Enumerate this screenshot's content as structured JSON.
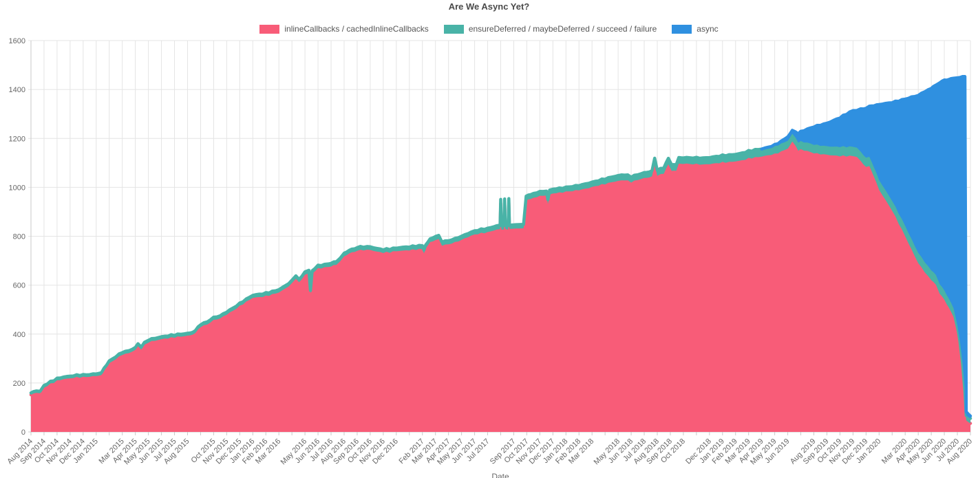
{
  "title": "Are We Async Yet?",
  "colors": {
    "pink": "#F85C78",
    "teal": "#49B3A7",
    "blue": "#2F90E0",
    "grid": "#e4e4e4",
    "axis": "#c9c9c9",
    "tick_text": "#666666",
    "title_text": "#4a4a4a"
  },
  "legend": [
    {
      "label": "inlineCallbacks / cachedInlineCallbacks",
      "color_key": "pink"
    },
    {
      "label": "ensureDeferred / maybeDeferred / succeed / failure",
      "color_key": "teal"
    },
    {
      "label": "async",
      "color_key": "blue"
    }
  ],
  "chart_data": {
    "type": "area",
    "stacked": true,
    "title": "Are We Async Yet?",
    "xlabel": "Date",
    "ylabel": "",
    "ylim": [
      0,
      1600
    ],
    "grid": true,
    "legend_position": "top",
    "y_ticks": [
      0,
      200,
      400,
      600,
      800,
      1000,
      1200,
      1400,
      1600
    ],
    "x_ticks": [
      "Aug 2014",
      "Sep 2014",
      "Oct 2014",
      "Nov 2014",
      "Dec 2014",
      "Jan 2015",
      "",
      "Mar 2015",
      "Apr 2015",
      "May 2015",
      "Jun 2015",
      "Jul 2015",
      "Aug 2015",
      "",
      "Oct 2015",
      "Nov 2015",
      "Dec 2015",
      "Jan 2016",
      "Feb 2016",
      "Mar 2016",
      "",
      "May 2016",
      "Jun 2016",
      "Jul 2016",
      "Aug 2016",
      "Sep 2016",
      "Oct 2016",
      "Nov 2016",
      "Dec 2016",
      "",
      "Feb 2017",
      "Mar 2017",
      "Apr 2017",
      "May 2017",
      "Jun 2017",
      "Jul 2017",
      "",
      "Sep 2017",
      "Oct 2017",
      "Nov 2017",
      "Dec 2017",
      "Jan 2018",
      "Feb 2018",
      "Mar 2018",
      "",
      "May 2018",
      "Jun 2018",
      "Jul 2018",
      "Aug 2018",
      "Sep 2018",
      "Oct 2018",
      "",
      "Dec 2018",
      "Jan 2019",
      "Feb 2019",
      "Mar 2019",
      "Apr 2019",
      "May 2019",
      "Jun 2019",
      "",
      "Aug 2019",
      "Sep 2019",
      "Oct 2019",
      "Nov 2019",
      "Dec 2019",
      "Jan 2020",
      "",
      "Mar 2020",
      "Apr 2020",
      "May 2020",
      "Jun 2020",
      "Jul 2020",
      "Aug 2020"
    ],
    "series_names": [
      "inlineCallbacks / cachedInlineCallbacks",
      "ensureDeferred / maybeDeferred / succeed / failure",
      "async"
    ],
    "points_format": [
      "months_since_aug_2014",
      "inlineCallbacks",
      "ensureDeferred",
      "async"
    ],
    "points": [
      [
        0,
        150,
        8,
        0
      ],
      [
        0.4,
        162,
        8,
        0
      ],
      [
        0.7,
        157,
        8,
        0
      ],
      [
        1,
        181,
        9,
        0
      ],
      [
        1.5,
        196,
        9,
        0
      ],
      [
        2,
        209,
        9,
        0
      ],
      [
        2.5,
        216,
        9,
        0
      ],
      [
        3,
        219,
        9,
        0
      ],
      [
        3.5,
        223,
        9,
        0
      ],
      [
        4,
        224,
        9,
        0
      ],
      [
        4.5,
        226,
        9,
        0
      ],
      [
        5,
        229,
        9,
        0
      ],
      [
        5.4,
        230,
        10,
        0
      ],
      [
        5.6,
        252,
        10,
        0
      ],
      [
        6,
        280,
        10,
        0
      ],
      [
        6.5,
        298,
        10,
        0
      ],
      [
        7,
        316,
        10,
        0
      ],
      [
        7.5,
        322,
        10,
        0
      ],
      [
        8,
        335,
        10,
        0
      ],
      [
        8.2,
        350,
        10,
        0
      ],
      [
        8.45,
        338,
        10,
        0
      ],
      [
        8.7,
        355,
        10,
        0
      ],
      [
        9,
        367,
        10,
        0
      ],
      [
        9.5,
        373,
        10,
        0
      ],
      [
        10,
        379,
        10,
        0
      ],
      [
        10.5,
        383,
        10,
        0
      ],
      [
        11,
        387,
        10,
        0
      ],
      [
        11.5,
        390,
        10,
        0
      ],
      [
        12,
        393,
        10,
        0
      ],
      [
        12.6,
        402,
        10,
        0
      ],
      [
        12.8,
        418,
        10,
        0
      ],
      [
        13,
        430,
        10,
        0
      ],
      [
        13.5,
        439,
        11,
        0
      ],
      [
        14,
        457,
        11,
        0
      ],
      [
        14.5,
        464,
        11,
        0
      ],
      [
        15,
        480,
        11,
        0
      ],
      [
        15.5,
        496,
        11,
        0
      ],
      [
        16,
        514,
        11,
        0
      ],
      [
        16.5,
        532,
        11,
        0
      ],
      [
        17,
        548,
        11,
        0
      ],
      [
        17.5,
        551,
        12,
        0
      ],
      [
        18,
        555,
        12,
        0
      ],
      [
        18.5,
        562,
        12,
        0
      ],
      [
        19,
        570,
        12,
        0
      ],
      [
        19.5,
        586,
        12,
        0
      ],
      [
        20,
        606,
        12,
        0
      ],
      [
        20.3,
        628,
        12,
        0
      ],
      [
        20.55,
        610,
        12,
        0
      ],
      [
        21,
        643,
        12,
        0
      ],
      [
        21.3,
        648,
        12,
        0
      ],
      [
        21.42,
        568,
        12,
        0
      ],
      [
        21.55,
        648,
        12,
        0
      ],
      [
        22,
        668,
        12,
        0
      ],
      [
        22.5,
        672,
        12,
        0
      ],
      [
        23,
        677,
        13,
        0
      ],
      [
        23.4,
        682,
        13,
        0
      ],
      [
        23.7,
        697,
        13,
        0
      ],
      [
        24,
        717,
        13,
        0
      ],
      [
        24.4,
        729,
        13,
        0
      ],
      [
        25,
        742,
        13,
        0
      ],
      [
        25.5,
        744,
        13,
        0
      ],
      [
        26,
        744,
        13,
        0
      ],
      [
        26.5,
        737,
        13,
        0
      ],
      [
        27,
        733,
        13,
        0
      ],
      [
        27.5,
        735,
        13,
        0
      ],
      [
        28,
        739,
        13,
        0
      ],
      [
        28.5,
        741,
        14,
        0
      ],
      [
        29,
        743,
        14,
        0
      ],
      [
        29.5,
        746,
        14,
        0
      ],
      [
        30,
        748,
        14,
        0
      ],
      [
        30.12,
        728,
        14,
        0
      ],
      [
        30.25,
        751,
        14,
        0
      ],
      [
        30.6,
        774,
        14,
        0
      ],
      [
        31,
        785,
        15,
        0
      ],
      [
        31.25,
        787,
        15,
        0
      ],
      [
        31.5,
        763,
        15,
        0
      ],
      [
        32,
        767,
        15,
        0
      ],
      [
        32.5,
        775,
        15,
        0
      ],
      [
        33,
        785,
        15,
        0
      ],
      [
        33.5,
        797,
        15,
        0
      ],
      [
        34,
        807,
        15,
        0
      ],
      [
        34.5,
        812,
        16,
        0
      ],
      [
        35,
        816,
        16,
        0
      ],
      [
        35.5,
        824,
        16,
        0
      ],
      [
        35.9,
        829,
        16,
        0
      ],
      [
        35.95,
        829,
        16,
        0
      ],
      [
        36,
        934,
        16,
        0
      ],
      [
        36.05,
        829,
        16,
        0
      ],
      [
        36.25,
        829,
        16,
        0
      ],
      [
        36.3,
        936,
        16,
        0
      ],
      [
        36.35,
        829,
        16,
        0
      ],
      [
        36.57,
        829,
        16,
        0
      ],
      [
        36.62,
        939,
        16,
        0
      ],
      [
        36.67,
        829,
        16,
        0
      ],
      [
        37,
        829,
        16,
        0
      ],
      [
        37.75,
        832,
        16,
        0
      ],
      [
        37.95,
        947,
        18,
        0
      ],
      [
        38.3,
        952,
        18,
        0
      ],
      [
        39,
        964,
        18,
        0
      ],
      [
        39.5,
        967,
        18,
        0
      ],
      [
        39.62,
        932,
        18,
        0
      ],
      [
        39.75,
        970,
        18,
        0
      ],
      [
        40,
        975,
        18,
        0
      ],
      [
        40.5,
        978,
        18,
        0
      ],
      [
        41,
        982,
        18,
        0
      ],
      [
        41.5,
        985,
        19,
        0
      ],
      [
        42,
        989,
        19,
        0
      ],
      [
        42.5,
        994,
        20,
        0
      ],
      [
        43,
        1001,
        20,
        0
      ],
      [
        43.5,
        1008,
        20,
        0
      ],
      [
        44,
        1014,
        21,
        0
      ],
      [
        44.5,
        1021,
        21,
        0
      ],
      [
        45,
        1026,
        22,
        0
      ],
      [
        45.5,
        1030,
        22,
        0
      ],
      [
        46,
        1022,
        22,
        0
      ],
      [
        46.5,
        1030,
        22,
        0
      ],
      [
        47,
        1038,
        22,
        0
      ],
      [
        47.6,
        1043,
        23,
        0
      ],
      [
        47.8,
        1095,
        23,
        0
      ],
      [
        48,
        1049,
        23,
        0
      ],
      [
        48.5,
        1056,
        24,
        0
      ],
      [
        48.85,
        1095,
        25,
        0
      ],
      [
        49.1,
        1065,
        25,
        0
      ],
      [
        49.45,
        1067,
        25,
        0
      ],
      [
        49.65,
        1095,
        25,
        0
      ],
      [
        50,
        1097,
        25,
        0
      ],
      [
        50.5,
        1095,
        26,
        0
      ],
      [
        51,
        1095,
        26,
        0
      ],
      [
        51.5,
        1093,
        27,
        0
      ],
      [
        52,
        1095,
        27,
        0
      ],
      [
        52.5,
        1098,
        28,
        0
      ],
      [
        53,
        1102,
        28,
        0
      ],
      [
        53.5,
        1103,
        29,
        0
      ],
      [
        54,
        1106,
        29,
        0
      ],
      [
        54.5,
        1110,
        30,
        0
      ],
      [
        55,
        1118,
        30,
        0
      ],
      [
        55.5,
        1122,
        31,
        0
      ],
      [
        56,
        1126,
        31,
        0
      ],
      [
        56.5,
        1131,
        31,
        2
      ],
      [
        57,
        1136,
        32,
        5
      ],
      [
        57.5,
        1146,
        32,
        10
      ],
      [
        58,
        1159,
        32,
        16
      ],
      [
        58.35,
        1185,
        32,
        14
      ],
      [
        58.6,
        1172,
        33,
        24
      ],
      [
        58.8,
        1150,
        33,
        36
      ],
      [
        59,
        1155,
        33,
        40
      ],
      [
        59.5,
        1148,
        34,
        56
      ],
      [
        60,
        1140,
        35,
        73
      ],
      [
        60.5,
        1136,
        35,
        84
      ],
      [
        61,
        1133,
        35,
        94
      ],
      [
        61.5,
        1130,
        36,
        107
      ],
      [
        62,
        1128,
        38,
        119
      ],
      [
        62.5,
        1128,
        38,
        134
      ],
      [
        63,
        1128,
        38,
        148
      ],
      [
        63.3,
        1126,
        38,
        152
      ],
      [
        63.6,
        1105,
        38,
        176
      ],
      [
        64,
        1085,
        38,
        202
      ],
      [
        64.25,
        1084,
        38,
        207
      ],
      [
        64.6,
        1044,
        39,
        250
      ],
      [
        65,
        990,
        40,
        309
      ],
      [
        65.5,
        947,
        40,
        356
      ],
      [
        66,
        905,
        40,
        402
      ],
      [
        66.5,
        853,
        41,
        460
      ],
      [
        67,
        800,
        42,
        519
      ],
      [
        67.5,
        744,
        42,
        583
      ],
      [
        68,
        690,
        42,
        644
      ],
      [
        68.5,
        654,
        41,
        697
      ],
      [
        69,
        620,
        40,
        744
      ],
      [
        69.35,
        602,
        40,
        776
      ],
      [
        69.65,
        563,
        39,
        824
      ],
      [
        70,
        540,
        38,
        860
      ],
      [
        70.35,
        508,
        37,
        896
      ],
      [
        70.7,
        470,
        36,
        940
      ],
      [
        71,
        400,
        35,
        1012
      ],
      [
        71.2,
        338,
        33,
        1080
      ],
      [
        71.4,
        248,
        30,
        1175
      ],
      [
        71.58,
        140,
        26,
        1288
      ],
      [
        71.68,
        45,
        20,
        15
      ],
      [
        72,
        35,
        20,
        10
      ]
    ]
  }
}
